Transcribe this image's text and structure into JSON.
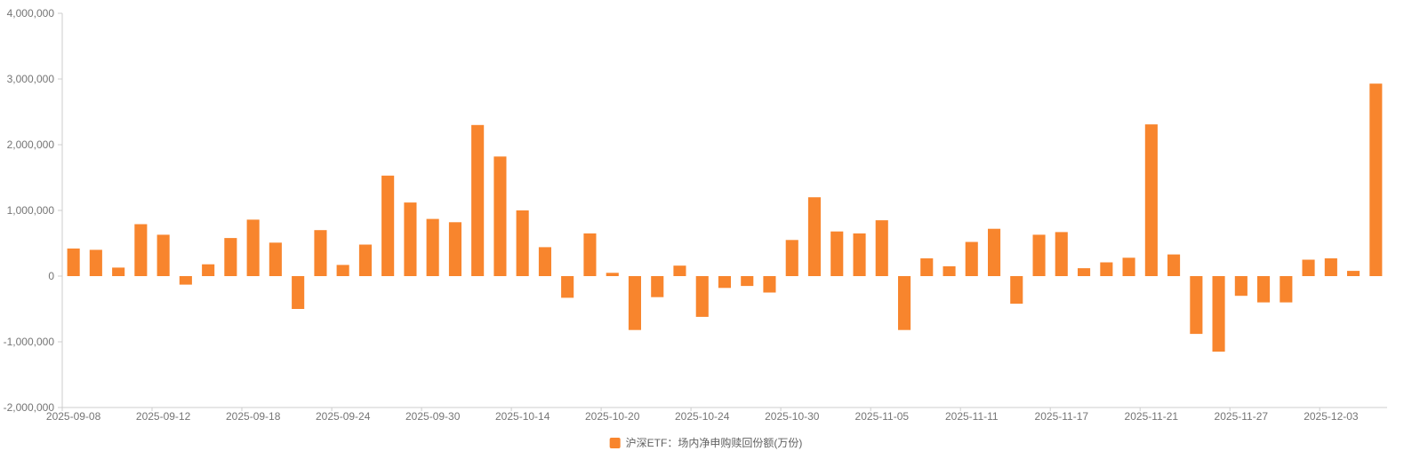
{
  "chart_data": {
    "type": "bar",
    "title": "",
    "legend": "沪深ETF：场内净申购赎回份额(万份)",
    "series_name": "沪深ETF：场内净申购赎回份额(万份)",
    "bar_color": "#F8852D",
    "axis_line_color": "#cccccc",
    "text_color": "#757575",
    "grid": false,
    "legend_position": "bottom-center",
    "ylim": [
      -2000000,
      4000000
    ],
    "y_ticks": [
      -2000000,
      -1000000,
      0,
      1000000,
      2000000,
      3000000,
      4000000
    ],
    "y_tick_labels": [
      "-2,000,000",
      "-1,000,000",
      "0",
      "1,000,000",
      "2,000,000",
      "3,000,000",
      "4,000,000"
    ],
    "x_label_interval": 4,
    "x_tick_labels_shown": [
      "2025-09-08",
      "2025-09-12",
      "2025-09-18",
      "2025-09-24",
      "2025-09-30",
      "2025-10-14",
      "2025-10-20",
      "2025-10-24",
      "2025-10-30",
      "2025-11-05",
      "2025-11-11",
      "2025-11-17",
      "2025-11-21",
      "2025-11-27",
      "2025-12-03"
    ],
    "categories": [
      "2025-09-08",
      "2025-09-09",
      "2025-09-10",
      "2025-09-11",
      "2025-09-12",
      "2025-09-15",
      "2025-09-16",
      "2025-09-17",
      "2025-09-18",
      "2025-09-19",
      "2025-09-22",
      "2025-09-23",
      "2025-09-24",
      "2025-09-25",
      "2025-09-26",
      "2025-09-29",
      "2025-09-30",
      "2025-10-09",
      "2025-10-10",
      "2025-10-13",
      "2025-10-14",
      "2025-10-15",
      "2025-10-16",
      "2025-10-17",
      "2025-10-20",
      "2025-10-21",
      "2025-10-22",
      "2025-10-23",
      "2025-10-24",
      "2025-10-27",
      "2025-10-28",
      "2025-10-29",
      "2025-10-30",
      "2025-10-31",
      "2025-11-03",
      "2025-11-04",
      "2025-11-05",
      "2025-11-06",
      "2025-11-07",
      "2025-11-10",
      "2025-11-11",
      "2025-11-12",
      "2025-11-13",
      "2025-11-14",
      "2025-11-17",
      "2025-11-18",
      "2025-11-19",
      "2025-11-20",
      "2025-11-21",
      "2025-11-24",
      "2025-11-25",
      "2025-11-26",
      "2025-11-27",
      "2025-11-28",
      "2025-12-01",
      "2025-12-02",
      "2025-12-03",
      "2025-12-04",
      "2025-12-05"
    ],
    "values": [
      420000,
      400000,
      130000,
      790000,
      630000,
      -130000,
      180000,
      580000,
      860000,
      510000,
      -500000,
      700000,
      170000,
      480000,
      1530000,
      1120000,
      870000,
      820000,
      2300000,
      1820000,
      1000000,
      440000,
      -330000,
      650000,
      50000,
      -820000,
      -320000,
      160000,
      -620000,
      -180000,
      -150000,
      -250000,
      550000,
      1200000,
      680000,
      650000,
      850000,
      -820000,
      270000,
      150000,
      520000,
      720000,
      -420000,
      630000,
      670000,
      120000,
      210000,
      280000,
      2310000,
      330000,
      -880000,
      -1150000,
      -300000,
      -400000,
      -400000,
      250000,
      270000,
      80000,
      2930000
    ]
  }
}
